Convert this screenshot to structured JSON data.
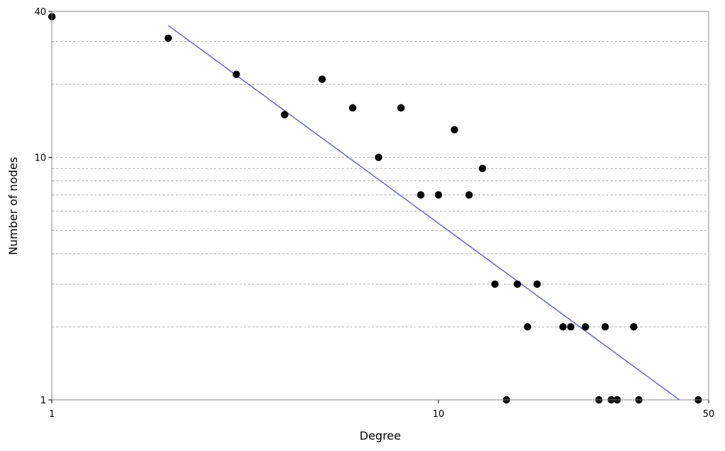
{
  "chart_data": {
    "type": "scatter",
    "title": "",
    "xlabel": "Degree",
    "ylabel": "Number of nodes",
    "x_scale": "log",
    "y_scale": "log",
    "xlim": [
      1,
      50
    ],
    "ylim": [
      1,
      40
    ],
    "x_ticks": [
      "1",
      "10",
      "50"
    ],
    "y_ticks": [
      "1",
      "10",
      "40"
    ],
    "y_gridlines": [
      2,
      3,
      4,
      5,
      6,
      7,
      8,
      9,
      10,
      20,
      30
    ],
    "grid": "horizontal dashed",
    "marker_color": "#000000",
    "line_color": "#7070d0",
    "points": [
      {
        "x": 1,
        "y": 38
      },
      {
        "x": 2,
        "y": 31
      },
      {
        "x": 3,
        "y": 22
      },
      {
        "x": 4,
        "y": 15
      },
      {
        "x": 5,
        "y": 21
      },
      {
        "x": 6,
        "y": 16
      },
      {
        "x": 7,
        "y": 10
      },
      {
        "x": 8,
        "y": 16
      },
      {
        "x": 9,
        "y": 7
      },
      {
        "x": 10,
        "y": 7
      },
      {
        "x": 11,
        "y": 13
      },
      {
        "x": 12,
        "y": 7
      },
      {
        "x": 13,
        "y": 9
      },
      {
        "x": 14,
        "y": 3
      },
      {
        "x": 15,
        "y": 1
      },
      {
        "x": 16,
        "y": 3
      },
      {
        "x": 17,
        "y": 2
      },
      {
        "x": 18,
        "y": 3
      },
      {
        "x": 21,
        "y": 2
      },
      {
        "x": 22,
        "y": 2
      },
      {
        "x": 24,
        "y": 2
      },
      {
        "x": 26,
        "y": 1
      },
      {
        "x": 27,
        "y": 2
      },
      {
        "x": 28,
        "y": 1
      },
      {
        "x": 29,
        "y": 1
      },
      {
        "x": 32,
        "y": 2
      },
      {
        "x": 33,
        "y": 1
      },
      {
        "x": 47,
        "y": 1
      }
    ],
    "fit_line": [
      {
        "x": 2,
        "y": 35
      },
      {
        "x": 42,
        "y": 1
      }
    ]
  }
}
